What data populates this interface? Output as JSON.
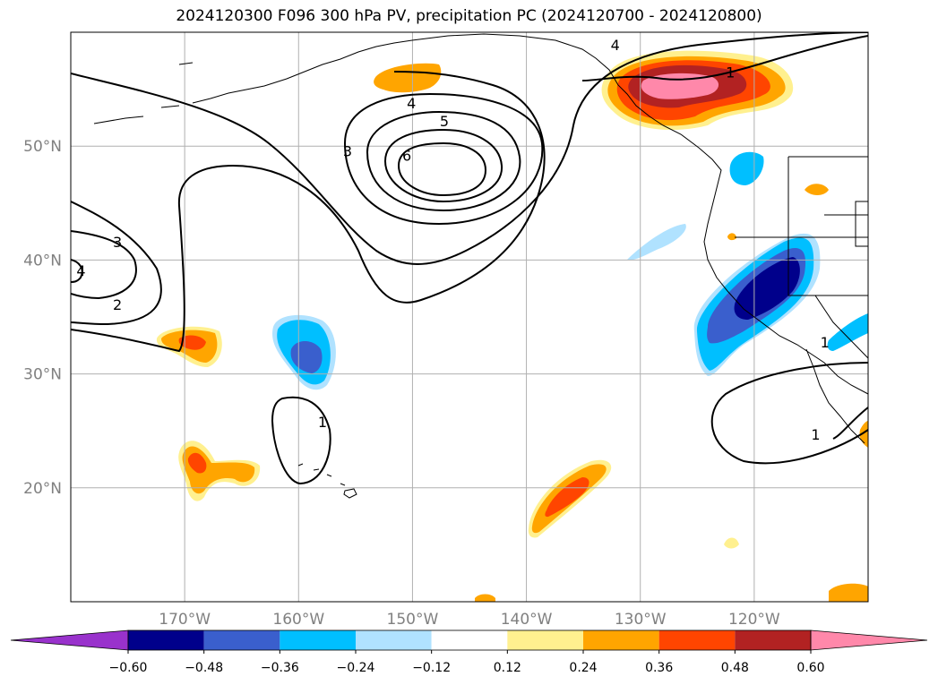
{
  "title": "2024120300 F096 300 hPa PV, precipitation PC (2024120700 - 2024120800)",
  "map": {
    "projection": "cylindrical",
    "lon_range": [
      -180,
      -110
    ],
    "lat_range": [
      10,
      60
    ],
    "lon_ticks": [
      {
        "value": -170,
        "label": "170°W"
      },
      {
        "value": -160,
        "label": "160°W"
      },
      {
        "value": -150,
        "label": "150°W"
      },
      {
        "value": -140,
        "label": "140°W"
      },
      {
        "value": -130,
        "label": "130°W"
      },
      {
        "value": -120,
        "label": "120°W"
      }
    ],
    "lat_ticks": [
      {
        "value": 20,
        "label": "20°N"
      },
      {
        "value": 30,
        "label": "30°N"
      },
      {
        "value": 40,
        "label": "40°N"
      },
      {
        "value": 50,
        "label": "50°N"
      }
    ],
    "grid": true,
    "pv_contour_labels": [
      {
        "text": "4",
        "lon": -132.2,
        "lat": 58.9
      },
      {
        "text": "1",
        "lon": -122.1,
        "lat": 56.5
      },
      {
        "text": "4",
        "lon": -150.1,
        "lat": 53.8
      },
      {
        "text": "5",
        "lon": -147.2,
        "lat": 52.2
      },
      {
        "text": "6",
        "lon": -150.5,
        "lat": 49.2
      },
      {
        "text": "3",
        "lon": -155.7,
        "lat": 49.6
      },
      {
        "text": "3",
        "lon": -175.9,
        "lat": 41.6
      },
      {
        "text": "4",
        "lon": -179.1,
        "lat": 39.1
      },
      {
        "text": "2",
        "lon": -175.9,
        "lat": 36.1
      },
      {
        "text": "1",
        "lon": -157.9,
        "lat": 25.8
      },
      {
        "text": "1",
        "lon": -114.6,
        "lat": 24.7
      },
      {
        "text": "1",
        "lon": -113.8,
        "lat": 32.8
      }
    ]
  },
  "colorbar": {
    "levels": [
      "−0.60",
      "−0.48",
      "−0.36",
      "−0.24",
      "−0.12",
      "0.12",
      "0.24",
      "0.36",
      "0.48",
      "0.60"
    ],
    "colors": [
      "#9932cc",
      "#00008b",
      "#3a5fcd",
      "#00bfff",
      "#b0e2ff",
      "#ffffff",
      "#fff08f",
      "#ffa500",
      "#ff4500",
      "#b22222",
      "#ff88aa"
    ],
    "extend": "both"
  }
}
